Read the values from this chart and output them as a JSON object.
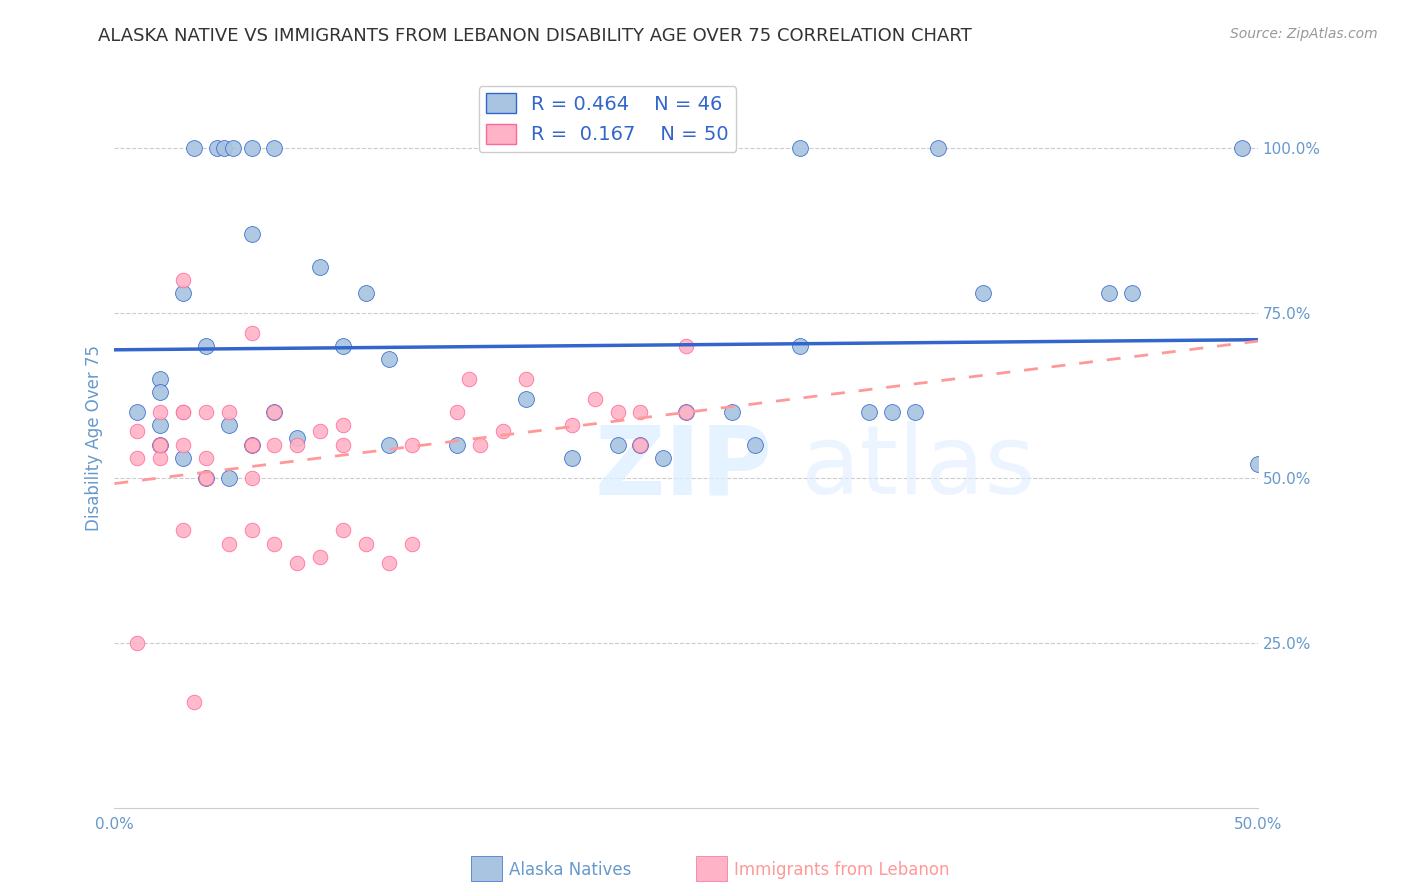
{
  "title": "ALASKA NATIVE VS IMMIGRANTS FROM LEBANON DISABILITY AGE OVER 75 CORRELATION CHART",
  "source": "Source: ZipAtlas.com",
  "ylabel": "Disability Age Over 75",
  "xlim": [
    0.0,
    0.5
  ],
  "ylim": [
    0.0,
    1.12
  ],
  "yticks": [
    0.25,
    0.5,
    0.75,
    1.0
  ],
  "ytick_labels": [
    "25.0%",
    "50.0%",
    "75.0%",
    "100.0%"
  ],
  "xticks": [
    0.0,
    0.05,
    0.1,
    0.15,
    0.2,
    0.25,
    0.3,
    0.35,
    0.4,
    0.45,
    0.5
  ],
  "xtick_labels": [
    "0.0%",
    "",
    "",
    "",
    "",
    "",
    "",
    "",
    "",
    "",
    "50.0%"
  ],
  "color_blue": "#A8C4E0",
  "color_pink": "#FFB3C6",
  "line_blue": "#3366CC",
  "line_pink": "#FF9999",
  "background": "#FFFFFF",
  "grid_color": "#CCCCCC",
  "title_color": "#333333",
  "source_color": "#999999",
  "axis_label_color": "#6699CC",
  "alaska_x": [
    0.035,
    0.045,
    0.048,
    0.052,
    0.06,
    0.07,
    0.3,
    0.36,
    0.493,
    0.445,
    0.5,
    0.38,
    0.435,
    0.02,
    0.04,
    0.03,
    0.02,
    0.01,
    0.02,
    0.02,
    0.03,
    0.04,
    0.05,
    0.05,
    0.06,
    0.07,
    0.08,
    0.11,
    0.12,
    0.22,
    0.25,
    0.27,
    0.28,
    0.23,
    0.24,
    0.33,
    0.34,
    0.35,
    0.18,
    0.3,
    0.06,
    0.09,
    0.1,
    0.12,
    0.15,
    0.2
  ],
  "alaska_y": [
    1.0,
    1.0,
    1.0,
    1.0,
    1.0,
    1.0,
    1.0,
    1.0,
    1.0,
    0.78,
    0.52,
    0.78,
    0.78,
    0.65,
    0.7,
    0.78,
    0.63,
    0.6,
    0.58,
    0.55,
    0.53,
    0.5,
    0.5,
    0.58,
    0.55,
    0.6,
    0.56,
    0.78,
    0.68,
    0.55,
    0.6,
    0.6,
    0.55,
    0.55,
    0.53,
    0.6,
    0.6,
    0.6,
    0.62,
    0.7,
    0.87,
    0.82,
    0.7,
    0.55,
    0.55,
    0.53
  ],
  "lebanon_x": [
    0.01,
    0.035,
    0.03,
    0.06,
    0.155,
    0.01,
    0.02,
    0.02,
    0.02,
    0.03,
    0.03,
    0.04,
    0.04,
    0.04,
    0.05,
    0.06,
    0.06,
    0.06,
    0.07,
    0.07,
    0.08,
    0.09,
    0.1,
    0.1,
    0.13,
    0.15,
    0.16,
    0.17,
    0.18,
    0.2,
    0.21,
    0.22,
    0.23,
    0.23,
    0.25,
    0.25,
    0.01,
    0.02,
    0.03,
    0.03,
    0.04,
    0.05,
    0.06,
    0.07,
    0.08,
    0.09,
    0.1,
    0.11,
    0.12,
    0.13
  ],
  "lebanon_y": [
    0.25,
    0.16,
    0.8,
    0.72,
    0.65,
    0.57,
    0.6,
    0.55,
    0.53,
    0.6,
    0.55,
    0.5,
    0.53,
    0.6,
    0.6,
    0.55,
    0.55,
    0.5,
    0.6,
    0.55,
    0.55,
    0.57,
    0.55,
    0.58,
    0.55,
    0.6,
    0.55,
    0.57,
    0.65,
    0.58,
    0.62,
    0.6,
    0.6,
    0.55,
    0.6,
    0.7,
    0.53,
    0.55,
    0.6,
    0.42,
    0.5,
    0.4,
    0.42,
    0.4,
    0.37,
    0.38,
    0.42,
    0.4,
    0.37,
    0.4
  ]
}
